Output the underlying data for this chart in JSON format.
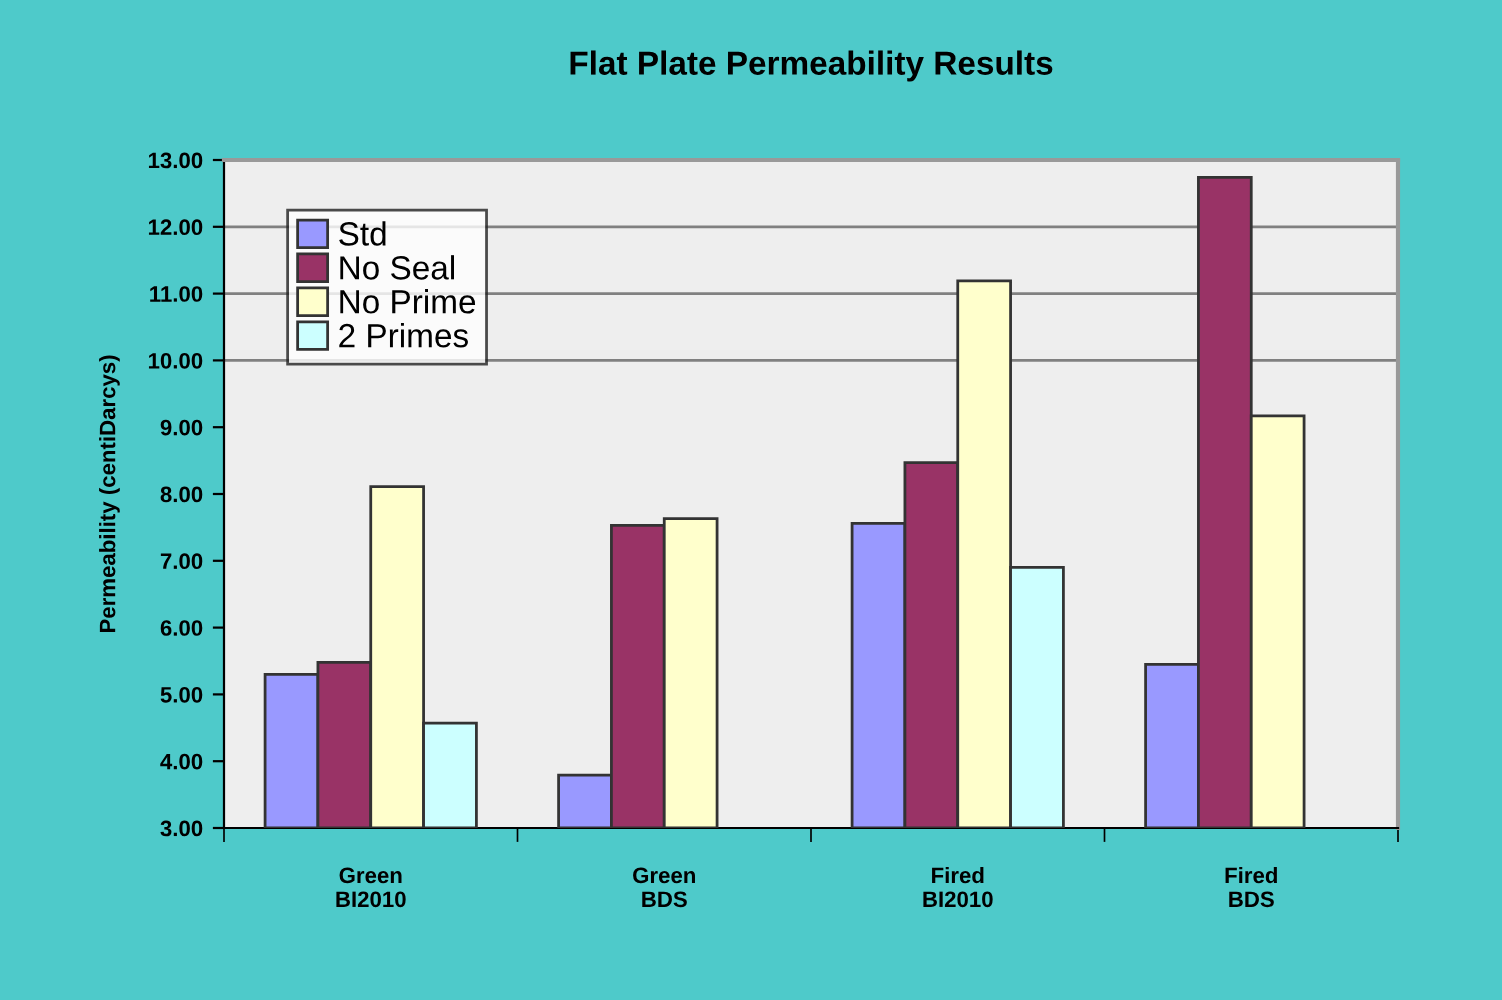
{
  "chart_data": {
    "type": "bar",
    "title": "Flat Plate Permeability Results",
    "ylabel": "Permeability (centiDarcys)",
    "categories": [
      "Green\nBI2010",
      "Green\nBDS",
      "Fired\nBI2010",
      "Fired\nBDS"
    ],
    "series": [
      {
        "name": "Std",
        "color": "#9999ff",
        "values": [
          5.3,
          3.79,
          7.56,
          5.45
        ]
      },
      {
        "name": "No Seal",
        "color": "#993366",
        "values": [
          5.48,
          7.53,
          8.47,
          12.74
        ]
      },
      {
        "name": "No Prime",
        "color": "#ffffcc",
        "values": [
          8.11,
          7.63,
          11.19,
          9.17
        ]
      },
      {
        "name": "2 Primes",
        "color": "#ccffff",
        "values": [
          4.57,
          null,
          6.9,
          null
        ]
      }
    ],
    "ylim": [
      3,
      13
    ],
    "yticks": [
      {
        "value": 3,
        "label": "3.00"
      },
      {
        "value": 4,
        "label": "4.00"
      },
      {
        "value": 5,
        "label": "5.00"
      },
      {
        "value": 6,
        "label": "6.00"
      },
      {
        "value": 7,
        "label": "7.00"
      },
      {
        "value": 8,
        "label": "8.00"
      },
      {
        "value": 9,
        "label": "9.00"
      },
      {
        "value": 10,
        "label": "10.00"
      },
      {
        "value": 11,
        "label": "11.00"
      },
      {
        "value": 12,
        "label": "12.00"
      },
      {
        "value": 13,
        "label": "13.00"
      }
    ],
    "ref_lines": [
      {
        "axis": "y",
        "value": 10,
        "color": "#808080"
      },
      {
        "axis": "y",
        "value": 11,
        "color": "#808080"
      },
      {
        "axis": "y",
        "value": 12,
        "color": "#808080"
      }
    ],
    "legend": "top left"
  }
}
